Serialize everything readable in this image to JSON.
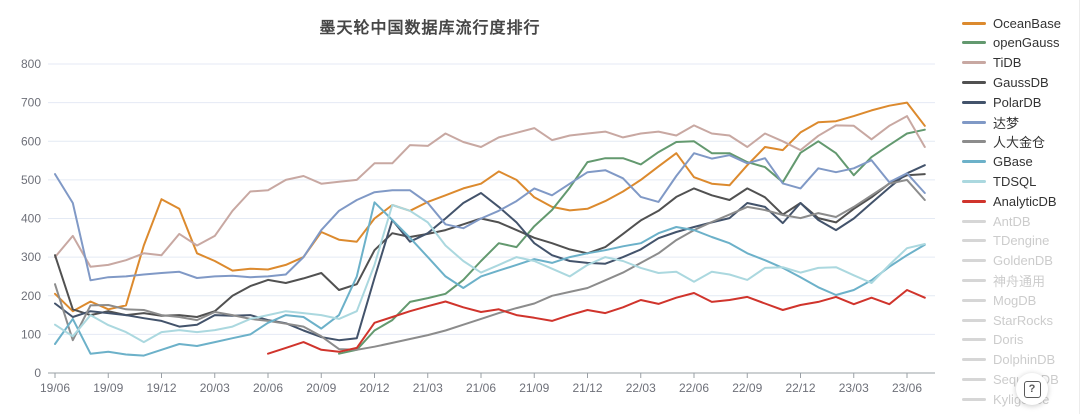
{
  "title": "墨天轮中国数据库流行度排行",
  "help_button": {
    "glyph": "?"
  },
  "axes": {
    "y": {
      "min": 0,
      "max": 800,
      "tick_labels": [
        "0",
        "100",
        "200",
        "300",
        "400",
        "500",
        "600",
        "700",
        "800"
      ]
    },
    "x": {
      "tick_labels": [
        "19/06",
        "19/09",
        "19/12",
        "20/03",
        "20/06",
        "20/09",
        "20/12",
        "21/03",
        "21/06",
        "21/09",
        "21/12",
        "22/03",
        "22/06",
        "22/09",
        "22/12",
        "23/03",
        "23/06"
      ],
      "tick_point_indices": [
        0,
        3,
        6,
        9,
        12,
        15,
        18,
        21,
        24,
        27,
        30,
        33,
        36,
        39,
        42,
        45,
        48
      ]
    }
  },
  "chart_data": {
    "type": "line",
    "title": "墨天轮中国数据库流行度排行",
    "x_unit": "month",
    "x_start": "2019-06",
    "x_end": "2023-07",
    "n_points": 50,
    "ylim": [
      0,
      800
    ],
    "grid": true,
    "legend_position": "right",
    "inactive_color": "#d6d6d6",
    "series": [
      {
        "name": "OceanBase",
        "color": "#DC8A2E",
        "active": true,
        "values": [
          205,
          160,
          185,
          165,
          175,
          330,
          450,
          425,
          310,
          290,
          265,
          270,
          268,
          280,
          300,
          365,
          345,
          340,
          400,
          435,
          420,
          443,
          460,
          478,
          490,
          522,
          500,
          455,
          430,
          421,
          425,
          445,
          470,
          500,
          535,
          569,
          507,
          490,
          486,
          538,
          585,
          577,
          623,
          649,
          652,
          665,
          680,
          692,
          700,
          640
        ]
      },
      {
        "name": "openGauss",
        "color": "#63996F",
        "active": true,
        "values": [
          null,
          null,
          null,
          null,
          null,
          null,
          null,
          null,
          null,
          null,
          null,
          null,
          null,
          null,
          null,
          null,
          50,
          60,
          110,
          137,
          184,
          194,
          205,
          241,
          290,
          336,
          326,
          380,
          422,
          480,
          546,
          556,
          556,
          540,
          572,
          598,
          600,
          569,
          569,
          546,
          533,
          494,
          570,
          600,
          569,
          512,
          559,
          590,
          620,
          630
        ]
      },
      {
        "name": "TiDB",
        "color": "#C8A8A2",
        "active": true,
        "values": [
          300,
          355,
          275,
          280,
          292,
          310,
          305,
          360,
          330,
          355,
          420,
          470,
          473,
          500,
          510,
          490,
          495,
          500,
          543,
          543,
          590,
          588,
          620,
          598,
          585,
          610,
          622,
          634,
          603,
          615,
          620,
          625,
          610,
          620,
          625,
          615,
          641,
          620,
          615,
          585,
          620,
          600,
          577,
          614,
          641,
          640,
          605,
          640,
          665,
          585
        ]
      },
      {
        "name": "GaussDB",
        "color": "#515151",
        "active": true,
        "values": [
          305,
          165,
          150,
          160,
          150,
          155,
          148,
          150,
          145,
          160,
          200,
          225,
          241,
          233,
          245,
          259,
          215,
          230,
          318,
          362,
          352,
          360,
          370,
          385,
          400,
          390,
          370,
          350,
          336,
          320,
          310,
          326,
          360,
          395,
          420,
          456,
          478,
          460,
          448,
          478,
          455,
          410,
          440,
          401,
          390,
          425,
          455,
          491,
          512,
          515
        ]
      },
      {
        "name": "PolarDB",
        "color": "#43536B",
        "active": true,
        "values": [
          180,
          145,
          160,
          155,
          150,
          142,
          135,
          120,
          125,
          150,
          148,
          150,
          137,
          129,
          110,
          93,
          85,
          90,
          246,
          396,
          340,
          362,
          400,
          440,
          466,
          430,
          390,
          336,
          305,
          290,
          285,
          283,
          300,
          320,
          349,
          365,
          378,
          390,
          401,
          440,
          430,
          388,
          440,
          396,
          370,
          400,
          440,
          480,
          517,
          538
        ]
      },
      {
        "name": "达梦",
        "color": "#8099C6",
        "active": true,
        "values": [
          515,
          440,
          240,
          248,
          250,
          255,
          259,
          262,
          246,
          250,
          252,
          248,
          250,
          255,
          300,
          370,
          420,
          448,
          468,
          473,
          473,
          440,
          385,
          375,
          400,
          420,
          445,
          478,
          460,
          490,
          520,
          525,
          504,
          456,
          443,
          510,
          569,
          555,
          564,
          543,
          556,
          491,
          478,
          530,
          520,
          530,
          551,
          494,
          517,
          466
        ]
      },
      {
        "name": "人大金仓",
        "color": "#8C8C8C",
        "active": true,
        "values": [
          230,
          85,
          175,
          176,
          165,
          163,
          150,
          145,
          137,
          158,
          150,
          140,
          135,
          128,
          120,
          95,
          62,
          60,
          68,
          78,
          88,
          98,
          110,
          125,
          140,
          155,
          168,
          180,
          200,
          210,
          220,
          240,
          260,
          285,
          310,
          344,
          370,
          391,
          410,
          430,
          422,
          409,
          401,
          414,
          404,
          430,
          460,
          490,
          500,
          448
        ]
      },
      {
        "name": "GBase",
        "color": "#6CB1C9",
        "active": true,
        "values": [
          75,
          140,
          50,
          55,
          48,
          45,
          60,
          75,
          70,
          80,
          90,
          100,
          130,
          150,
          145,
          115,
          150,
          250,
          442,
          396,
          350,
          300,
          250,
          220,
          250,
          265,
          280,
          295,
          285,
          300,
          310,
          318,
          328,
          336,
          362,
          378,
          370,
          352,
          336,
          310,
          292,
          272,
          248,
          222,
          202,
          215,
          240,
          275,
          305,
          332
        ]
      },
      {
        "name": "TDSQL",
        "color": "#ABD8DF",
        "active": true,
        "values": [
          125,
          95,
          150,
          124,
          106,
          80,
          106,
          111,
          106,
          111,
          120,
          140,
          150,
          160,
          155,
          150,
          140,
          160,
          280,
          435,
          420,
          390,
          330,
          290,
          260,
          280,
          300,
          290,
          270,
          250,
          280,
          300,
          290,
          272,
          259,
          262,
          236,
          262,
          255,
          241,
          272,
          274,
          260,
          272,
          274,
          253,
          233,
          280,
          323,
          334
        ]
      },
      {
        "name": "AnalyticDB",
        "color": "#D0342C",
        "active": true,
        "values": [
          null,
          null,
          null,
          null,
          null,
          null,
          null,
          null,
          null,
          null,
          null,
          null,
          50,
          65,
          80,
          60,
          55,
          65,
          130,
          145,
          160,
          173,
          185,
          170,
          158,
          165,
          150,
          143,
          135,
          150,
          163,
          155,
          170,
          189,
          179,
          195,
          207,
          184,
          189,
          197,
          180,
          163,
          176,
          184,
          197,
          178,
          195,
          178,
          215,
          195
        ]
      },
      {
        "name": "AntDB",
        "color": "#d6d6d6",
        "active": false,
        "values": null
      },
      {
        "name": "TDengine",
        "color": "#d6d6d6",
        "active": false,
        "values": null
      },
      {
        "name": "GoldenDB",
        "color": "#d6d6d6",
        "active": false,
        "values": null
      },
      {
        "name": "神舟通用",
        "color": "#d6d6d6",
        "active": false,
        "values": null
      },
      {
        "name": "MogDB",
        "color": "#d6d6d6",
        "active": false,
        "values": null
      },
      {
        "name": "StarRocks",
        "color": "#d6d6d6",
        "active": false,
        "values": null
      },
      {
        "name": "Doris",
        "color": "#d6d6d6",
        "active": false,
        "values": null
      },
      {
        "name": "DolphinDB",
        "color": "#d6d6d6",
        "active": false,
        "values": null
      },
      {
        "name": "SequoiaDB",
        "color": "#d6d6d6",
        "active": false,
        "values": null
      },
      {
        "name": "Kyligence",
        "color": "#d6d6d6",
        "active": false,
        "values": null
      }
    ]
  }
}
